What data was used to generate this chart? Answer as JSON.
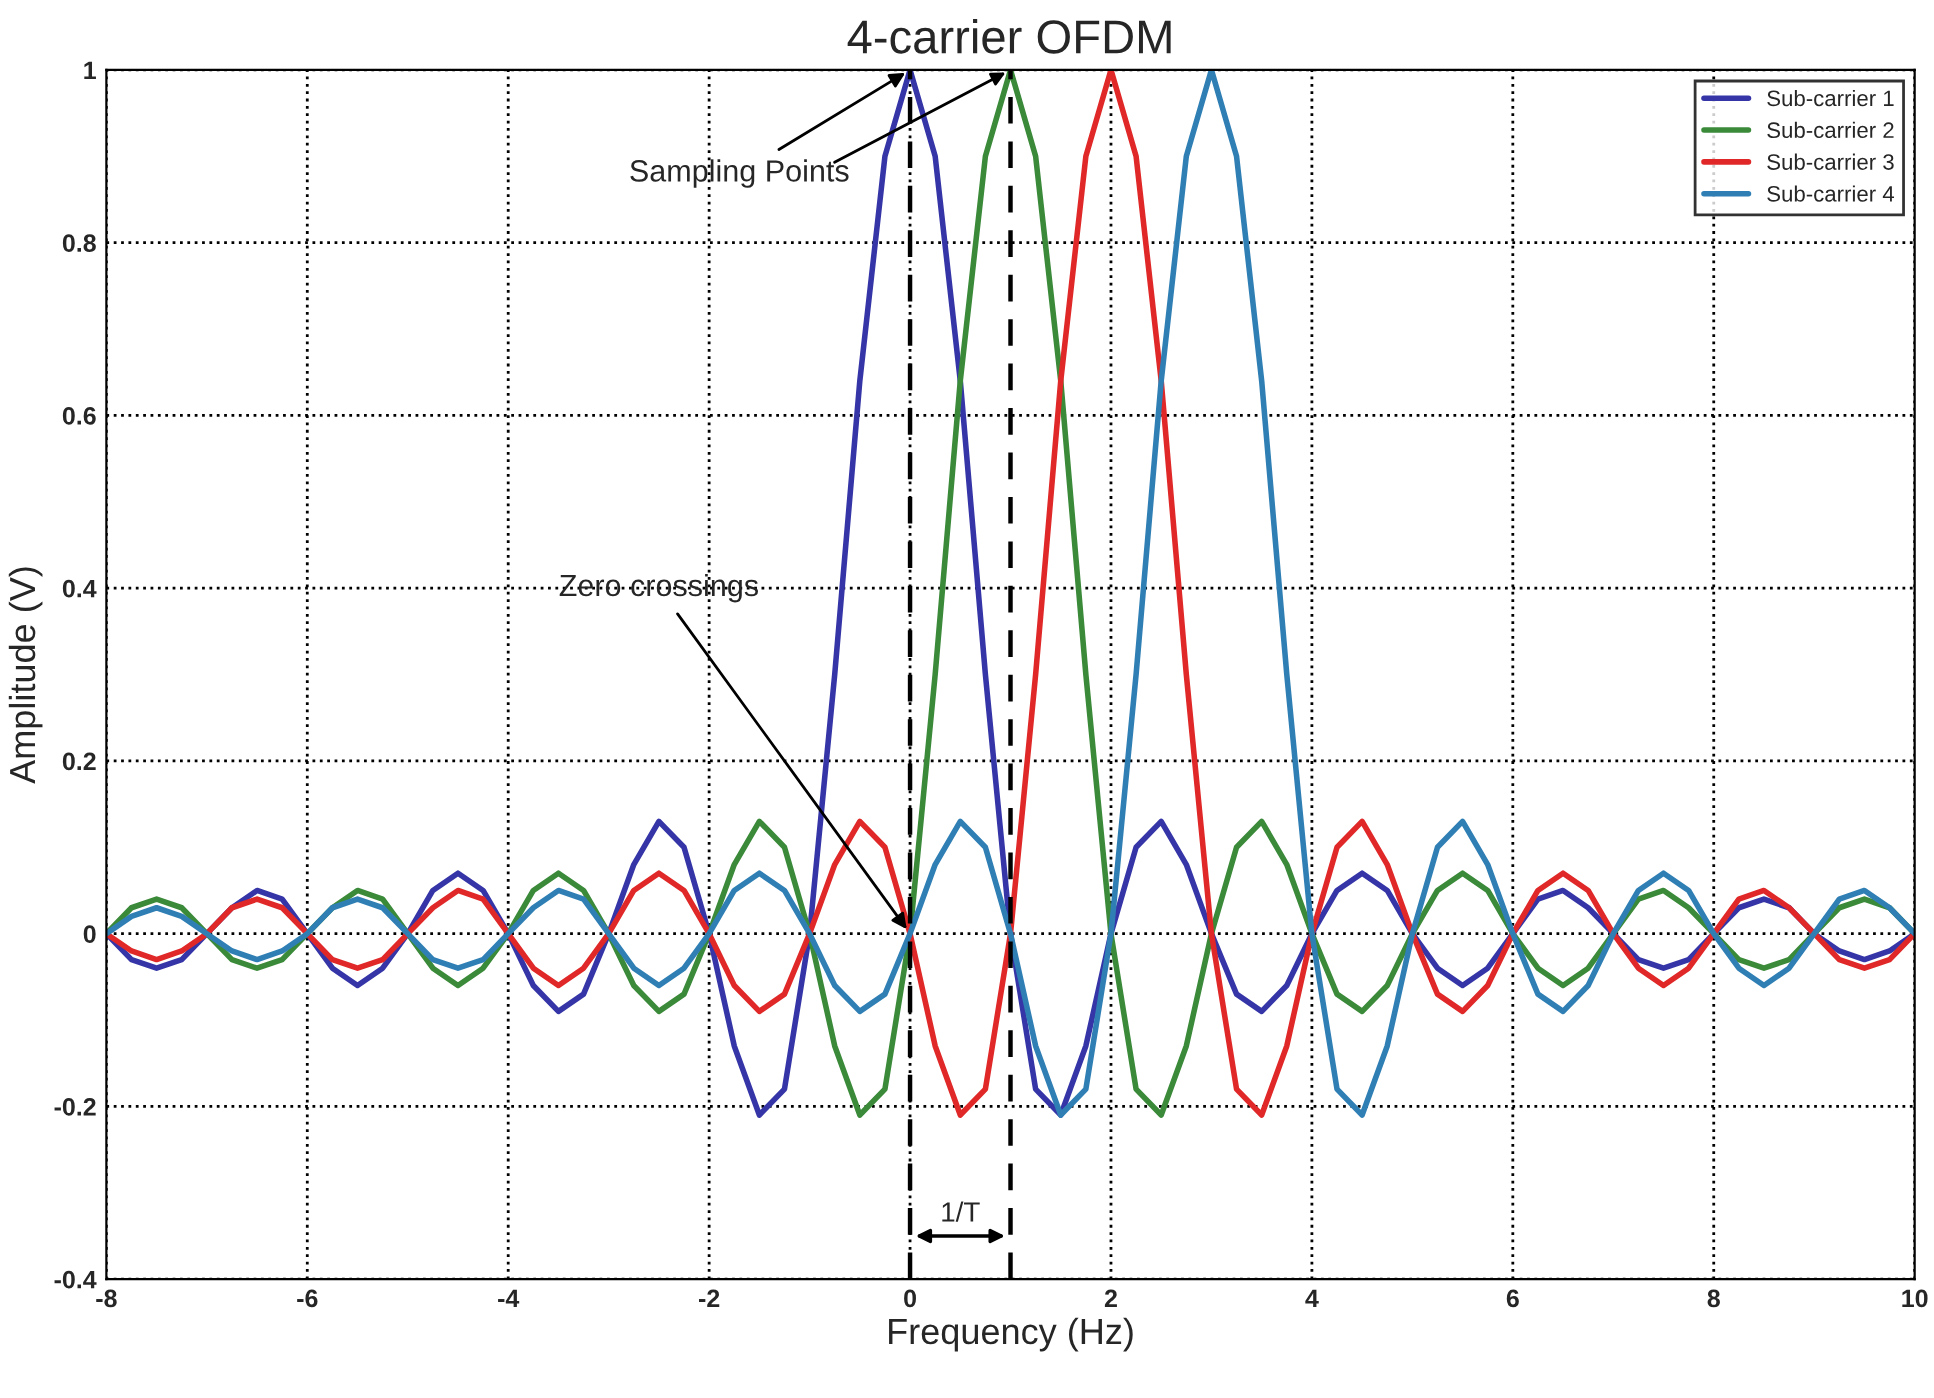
{
  "chart_data": {
    "type": "line",
    "title": "4-carrier OFDM",
    "xlabel": "Frequency (Hz)",
    "ylabel": "Amplitude (V)",
    "x": [
      -8,
      -7.75,
      -7.5,
      -7.25,
      -7,
      -6.75,
      -6.5,
      -6.25,
      -6,
      -5.75,
      -5.5,
      -5.25,
      -5,
      -4.75,
      -4.5,
      -4.25,
      -4,
      -3.75,
      -3.5,
      -3.25,
      -3,
      -2.75,
      -2.5,
      -2.25,
      -2,
      -1.75,
      -1.5,
      -1.25,
      -1,
      -0.75,
      -0.5,
      -0.25,
      0,
      0.25,
      0.5,
      0.75,
      1,
      1.25,
      1.5,
      1.75,
      2,
      2.25,
      2.5,
      2.75,
      3,
      3.25,
      3.5,
      3.75,
      4,
      4.25,
      4.5,
      4.75,
      5,
      5.25,
      5.5,
      5.75,
      6,
      6.25,
      6.5,
      6.75,
      7,
      7.25,
      7.5,
      7.75,
      8,
      8.25,
      8.5,
      8.75,
      9,
      9.25,
      9.5,
      9.75,
      10
    ],
    "series": [
      {
        "name": "Sub-carrier 1",
        "color": "#3535a8",
        "values": [
          0,
          -0.03,
          -0.04,
          -0.03,
          0,
          0.03,
          0.05,
          0.04,
          0,
          -0.04,
          -0.06,
          -0.04,
          0,
          0.05,
          0.07,
          0.05,
          0,
          -0.06,
          -0.09,
          -0.07,
          0,
          0.08,
          0.13,
          0.1,
          0,
          -0.13,
          -0.21,
          -0.18,
          0,
          0.3,
          0.64,
          0.9,
          1,
          0.9,
          0.64,
          0.3,
          0,
          -0.18,
          -0.21,
          -0.13,
          0,
          0.1,
          0.13,
          0.08,
          0,
          -0.07,
          -0.09,
          -0.06,
          0,
          0.05,
          0.07,
          0.05,
          0,
          -0.04,
          -0.06,
          -0.04,
          0,
          0.04,
          0.05,
          0.03,
          0,
          -0.03,
          -0.04,
          -0.03,
          0,
          0.03,
          0.04,
          0.03,
          0,
          -0.02,
          -0.03,
          -0.02,
          0
        ]
      },
      {
        "name": "Sub-carrier 2",
        "color": "#3a8a3a",
        "values": [
          0,
          0.03,
          0.04,
          0.03,
          0,
          -0.03,
          -0.04,
          -0.03,
          0,
          0.03,
          0.05,
          0.04,
          0,
          -0.04,
          -0.06,
          -0.04,
          0,
          0.05,
          0.07,
          0.05,
          0,
          -0.06,
          -0.09,
          -0.07,
          0,
          0.08,
          0.13,
          0.1,
          0,
          -0.13,
          -0.21,
          -0.18,
          0,
          0.3,
          0.64,
          0.9,
          1,
          0.9,
          0.64,
          0.3,
          0,
          -0.18,
          -0.21,
          -0.13,
          0,
          0.1,
          0.13,
          0.08,
          0,
          -0.07,
          -0.09,
          -0.06,
          0,
          0.05,
          0.07,
          0.05,
          0,
          -0.04,
          -0.06,
          -0.04,
          0,
          0.04,
          0.05,
          0.03,
          0,
          -0.03,
          -0.04,
          -0.03,
          0,
          0.03,
          0.04,
          0.03,
          0
        ]
      },
      {
        "name": "Sub-carrier 3",
        "color": "#e02828",
        "values": [
          0,
          -0.02,
          -0.03,
          -0.02,
          0,
          0.03,
          0.04,
          0.03,
          0,
          -0.03,
          -0.04,
          -0.03,
          0,
          0.03,
          0.05,
          0.04,
          0,
          -0.04,
          -0.06,
          -0.04,
          0,
          0.05,
          0.07,
          0.05,
          0,
          -0.06,
          -0.09,
          -0.07,
          0,
          0.08,
          0.13,
          0.1,
          0,
          -0.13,
          -0.21,
          -0.18,
          0,
          0.3,
          0.64,
          0.9,
          1,
          0.9,
          0.64,
          0.3,
          0,
          -0.18,
          -0.21,
          -0.13,
          0,
          0.1,
          0.13,
          0.08,
          0,
          -0.07,
          -0.09,
          -0.06,
          0,
          0.05,
          0.07,
          0.05,
          0,
          -0.04,
          -0.06,
          -0.04,
          0,
          0.04,
          0.05,
          0.03,
          0,
          -0.03,
          -0.04,
          -0.03,
          0
        ]
      },
      {
        "name": "Sub-carrier 4",
        "color": "#2f7fb5",
        "values": [
          0,
          0.02,
          0.03,
          0.02,
          0,
          -0.02,
          -0.03,
          -0.02,
          0,
          0.03,
          0.04,
          0.03,
          0,
          -0.03,
          -0.04,
          -0.03,
          0,
          0.03,
          0.05,
          0.04,
          0,
          -0.04,
          -0.06,
          -0.04,
          0,
          0.05,
          0.07,
          0.05,
          0,
          -0.06,
          -0.09,
          -0.07,
          0,
          0.08,
          0.13,
          0.1,
          0,
          -0.13,
          -0.21,
          -0.18,
          0,
          0.3,
          0.64,
          0.9,
          1,
          0.9,
          0.64,
          0.3,
          0,
          -0.18,
          -0.21,
          -0.13,
          0,
          0.1,
          0.13,
          0.08,
          0,
          -0.07,
          -0.09,
          -0.06,
          0,
          0.05,
          0.07,
          0.05,
          0,
          -0.04,
          -0.06,
          -0.04,
          0,
          0.04,
          0.05,
          0.03,
          0
        ]
      }
    ],
    "xlim": [
      -8,
      10
    ],
    "xticks": [
      -8,
      -6,
      -4,
      -2,
      0,
      2,
      4,
      6,
      8,
      10
    ],
    "ylim": [
      -0.4,
      1
    ],
    "yticks": [
      -0.4,
      -0.2,
      0,
      0.2,
      0.4,
      0.6,
      0.8,
      1
    ],
    "ref_lines": [
      {
        "axis": "x",
        "value": 0,
        "color": "#000000",
        "line_style": "dashed"
      },
      {
        "axis": "x",
        "value": 1,
        "color": "#000000",
        "line_style": "dashed"
      }
    ],
    "annotations": [
      {
        "text": "Sampling Points",
        "x": 0,
        "y": 1
      },
      {
        "text": "Zero crossings",
        "x": 0,
        "y": 0
      },
      "1/T"
    ],
    "grid": true,
    "legend": "top right",
    "marker": "none",
    "line_style": "solid"
  }
}
